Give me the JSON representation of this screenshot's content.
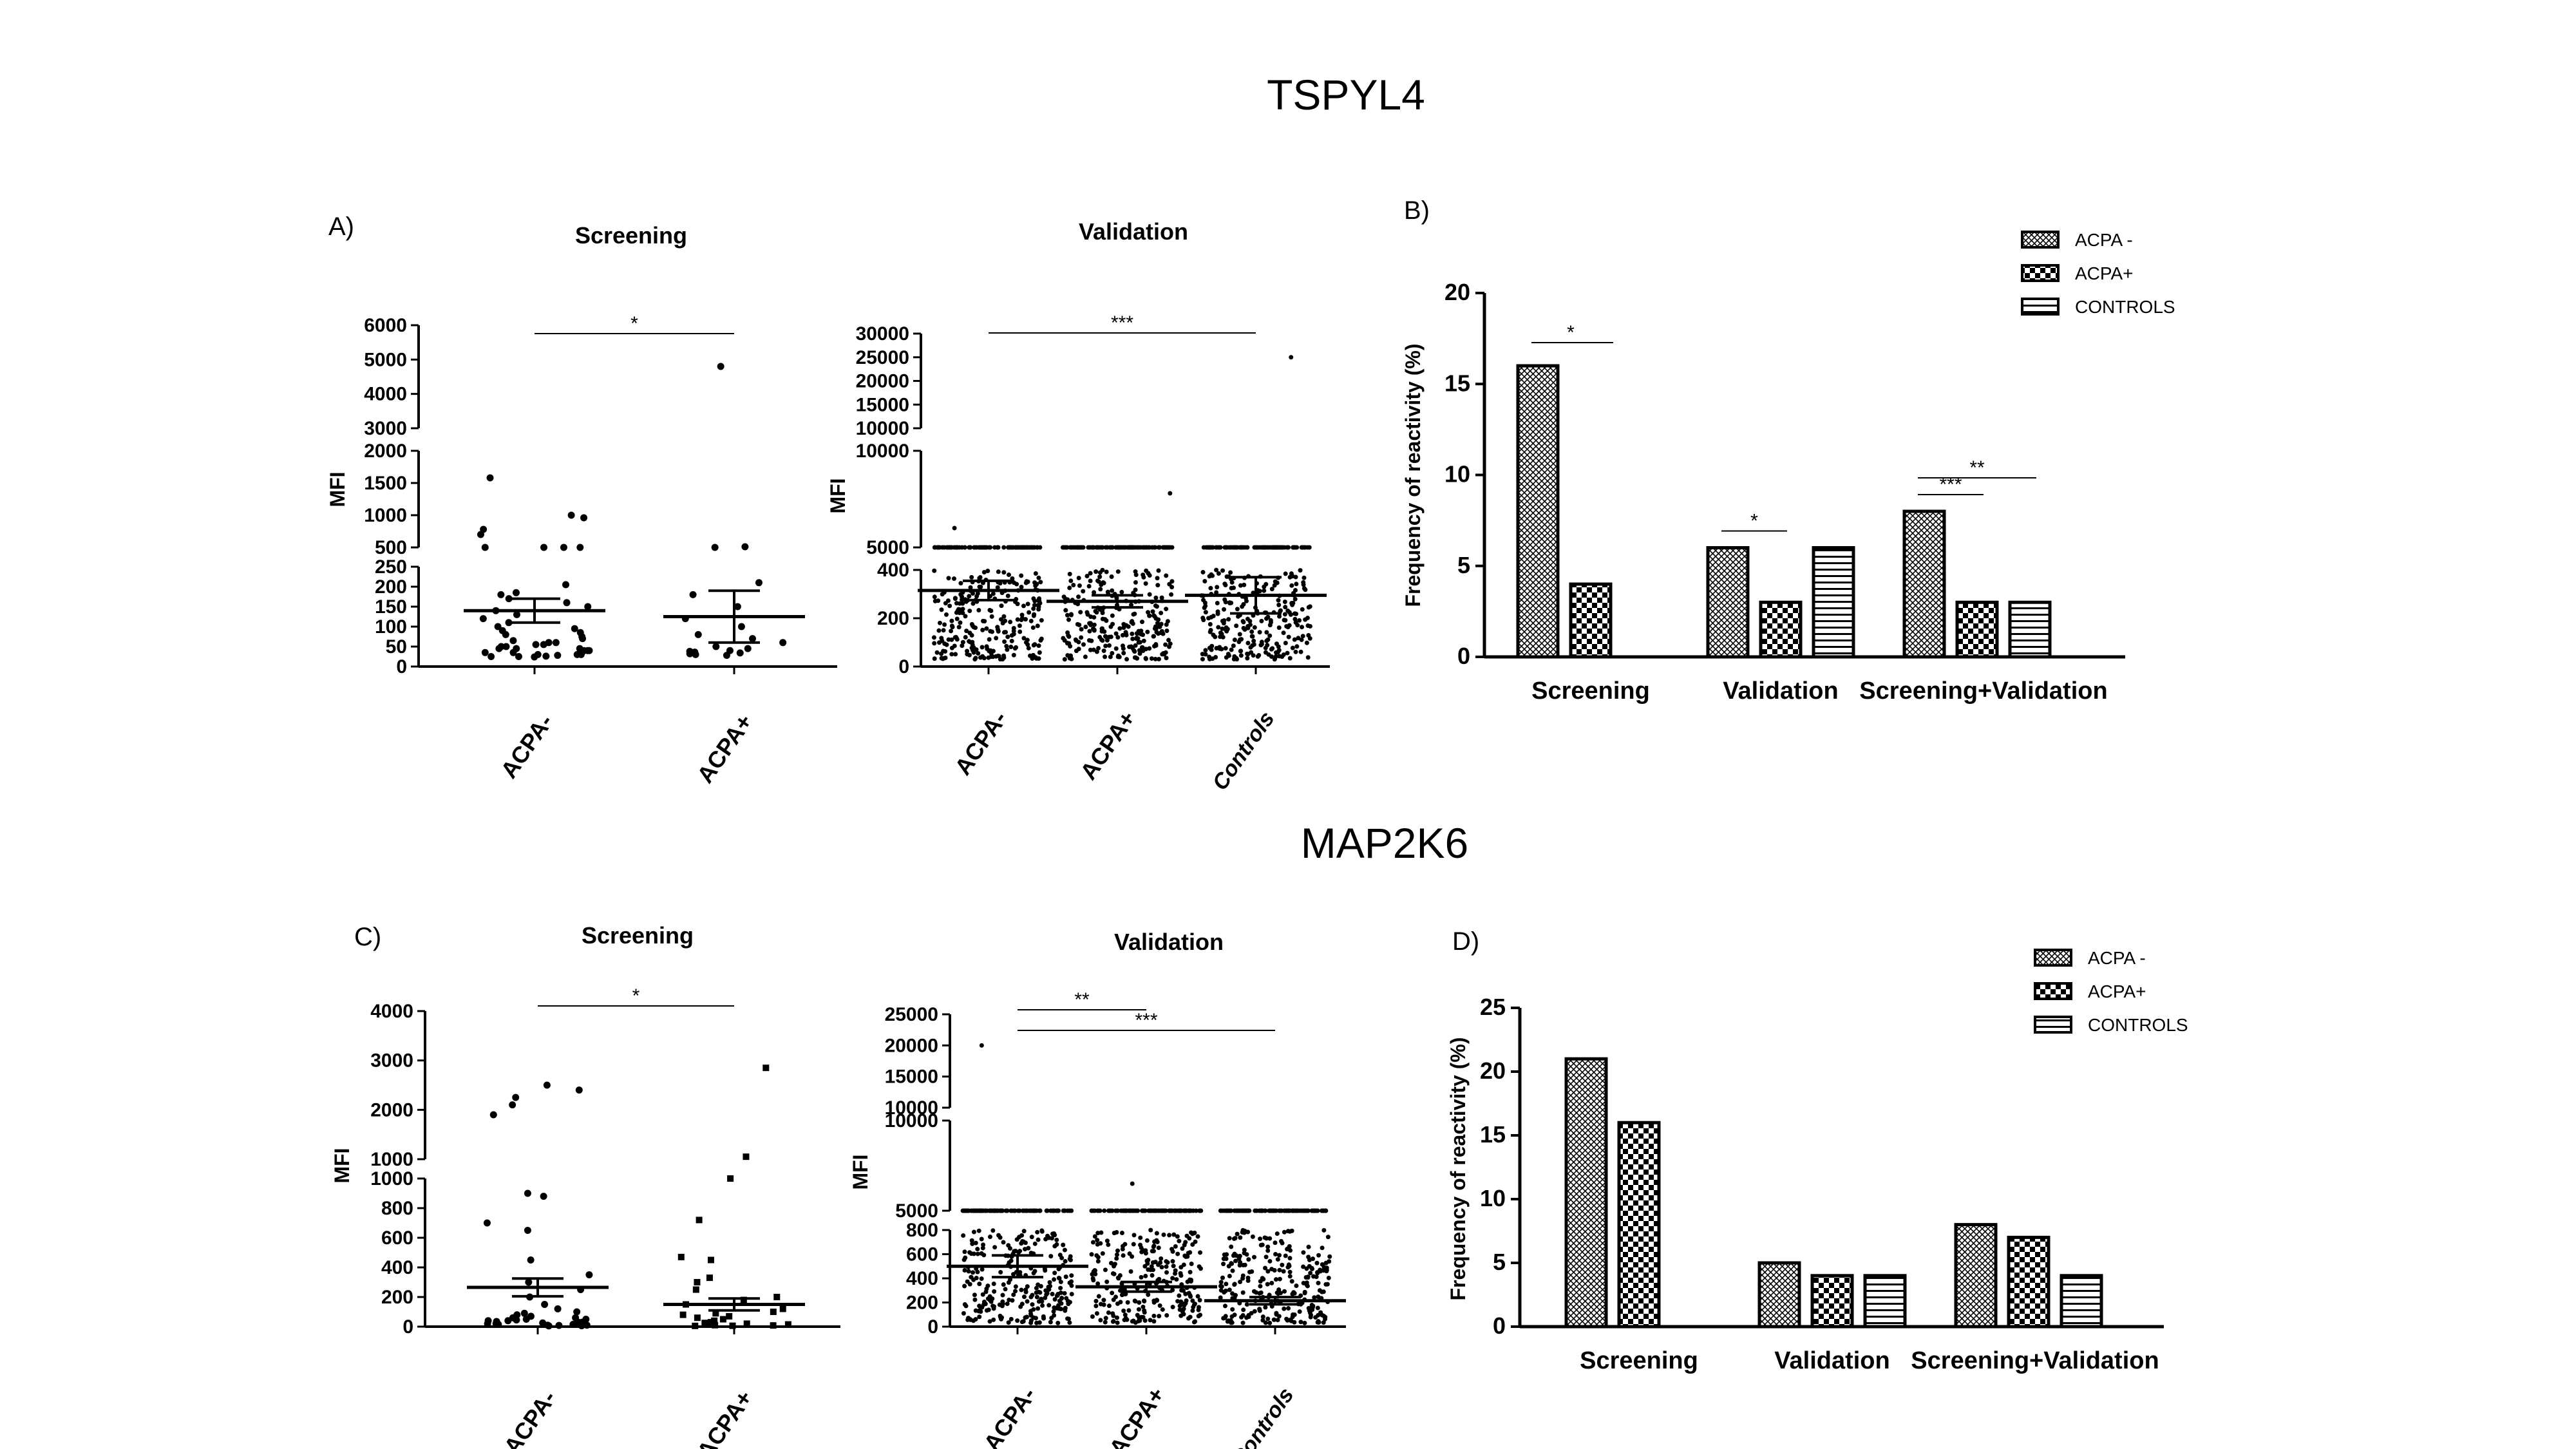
{
  "titles": {
    "top": "TSPYL4",
    "bottom": "MAP2K6"
  },
  "legend": [
    "ACPA -",
    "ACPA+",
    "CONTROLS"
  ],
  "chart_data": [
    {
      "id": "A",
      "panel_label": "A)",
      "type": "scatter",
      "title": "Screening",
      "ylabel": "MFI",
      "categories": [
        "ACPA-",
        "ACPA+"
      ],
      "axis_segments": [
        {
          "ticks": [
            0,
            50,
            100,
            150,
            200,
            250
          ]
        },
        {
          "ticks": [
            500,
            1000,
            1500,
            2000
          ]
        },
        {
          "ticks": [
            3000,
            4000,
            5000,
            6000
          ]
        }
      ],
      "means": [
        140,
        125
      ],
      "sem": [
        30,
        65
      ],
      "points": [
        [
          1580,
          1000,
          960,
          780,
          700,
          440,
          420,
          400,
          380,
          205,
          185,
          180,
          170,
          160,
          150,
          140,
          130,
          120,
          110,
          100,
          95,
          90,
          85,
          80,
          75,
          70,
          65,
          60,
          55,
          50,
          45,
          45,
          40,
          40,
          35,
          35,
          30,
          30,
          25,
          25,
          60,
          55,
          50,
          45,
          40,
          35,
          30,
          28,
          26,
          24
        ],
        [
          4800,
          510,
          420,
          210,
          180,
          150,
          120,
          100,
          80,
          70,
          60,
          50,
          45,
          40,
          38,
          36,
          34,
          32,
          30,
          28
        ]
      ],
      "significance": [
        {
          "from": "ACPA-",
          "to": "ACPA+",
          "label": "*"
        }
      ]
    },
    {
      "id": "A2",
      "type": "scatter",
      "title": "Validation",
      "ylabel": "MFI",
      "categories": [
        "ACPA-",
        "ACPA+",
        "Controls"
      ],
      "axis_segments": [
        {
          "ticks": [
            0,
            200,
            400
          ]
        },
        {
          "ticks": [
            5000,
            10000
          ]
        },
        {
          "ticks": [
            10000,
            15000,
            20000,
            25000,
            30000
          ]
        }
      ],
      "means": [
        315,
        270,
        295
      ],
      "sem": [
        40,
        25,
        75
      ],
      "tops": [
        6000,
        7800,
        25000
      ],
      "significance": [
        {
          "from": "ACPA-",
          "to": "Controls",
          "label": "***"
        }
      ]
    },
    {
      "id": "B",
      "panel_label": "B)",
      "type": "bar",
      "ylabel": "Frequency of reactivity (%)",
      "categories": [
        "Screening",
        "Validation",
        "Screening+Validation"
      ],
      "ylim": [
        0,
        20
      ],
      "yticks": [
        0,
        5,
        10,
        15,
        20
      ],
      "series": [
        {
          "name": "ACPA -",
          "values": [
            16,
            6,
            8
          ]
        },
        {
          "name": "ACPA+",
          "values": [
            4,
            3,
            3
          ]
        },
        {
          "name": "CONTROLS",
          "values": [
            0,
            6,
            3
          ]
        }
      ],
      "significance": [
        {
          "group": "Screening",
          "from": 0,
          "to": 1,
          "label": "*"
        },
        {
          "group": "Validation",
          "from": 0,
          "to": 1,
          "label": "*"
        },
        {
          "group": "Screening+Validation",
          "from": 0,
          "to": 1,
          "label": "***"
        },
        {
          "group": "Screening+Validation",
          "from": 0,
          "to": 2,
          "label": "**"
        }
      ]
    },
    {
      "id": "C",
      "panel_label": "C)",
      "type": "scatter",
      "title": "Screening",
      "ylabel": "MFI",
      "categories": [
        "ACPA-",
        "ACPA+"
      ],
      "axis_segments": [
        {
          "ticks": [
            0,
            200,
            400,
            600,
            800,
            1000
          ]
        },
        {
          "ticks": [
            1000,
            2000,
            3000,
            4000
          ]
        }
      ],
      "means": [
        265,
        150
      ],
      "sem": [
        60,
        40
      ],
      "points": [
        [
          2500,
          2400,
          2250,
          2100,
          1900,
          900,
          880,
          700,
          650,
          450,
          350,
          300,
          250,
          200,
          150,
          120,
          100,
          90,
          80,
          70,
          60,
          50,
          45,
          40,
          35,
          30,
          25,
          20,
          15,
          10,
          60,
          50,
          40,
          30,
          20,
          15,
          10,
          8,
          6,
          5
        ],
        [
          2850,
          1050,
          1000,
          720,
          470,
          450,
          330,
          300,
          250,
          200,
          180,
          150,
          120,
          100,
          90,
          80,
          70,
          60,
          50,
          40,
          30,
          25,
          20,
          15,
          10,
          8,
          6,
          5
        ]
      ],
      "significance": [
        {
          "from": "ACPA-",
          "to": "ACPA+",
          "label": "*"
        }
      ]
    },
    {
      "id": "C2",
      "type": "scatter",
      "title": "Validation",
      "ylabel": "MFI",
      "categories": [
        "ACPA-",
        "ACPA+",
        "Controls"
      ],
      "axis_segments": [
        {
          "ticks": [
            0,
            200,
            400,
            600,
            800
          ]
        },
        {
          "ticks": [
            5000,
            10000
          ]
        },
        {
          "ticks": [
            10000,
            15000,
            20000,
            25000
          ]
        }
      ],
      "means": [
        500,
        330,
        215
      ],
      "sem": [
        90,
        40,
        30
      ],
      "tops": [
        20000,
        6500,
        4500
      ],
      "significance": [
        {
          "from": "ACPA-",
          "to": "ACPA+",
          "label": "**"
        },
        {
          "from": "ACPA-",
          "to": "Controls",
          "label": "***"
        }
      ]
    },
    {
      "id": "D",
      "panel_label": "D)",
      "type": "bar",
      "ylabel": "Frequency of reactivity (%)",
      "categories": [
        "Screening",
        "Validation",
        "Screening+Validation"
      ],
      "ylim": [
        0,
        25
      ],
      "yticks": [
        0,
        5,
        10,
        15,
        20,
        25
      ],
      "series": [
        {
          "name": "ACPA -",
          "values": [
            21,
            5,
            8
          ]
        },
        {
          "name": "ACPA+",
          "values": [
            16,
            4,
            7
          ]
        },
        {
          "name": "CONTROLS",
          "values": [
            0,
            4,
            4
          ]
        }
      ]
    }
  ]
}
